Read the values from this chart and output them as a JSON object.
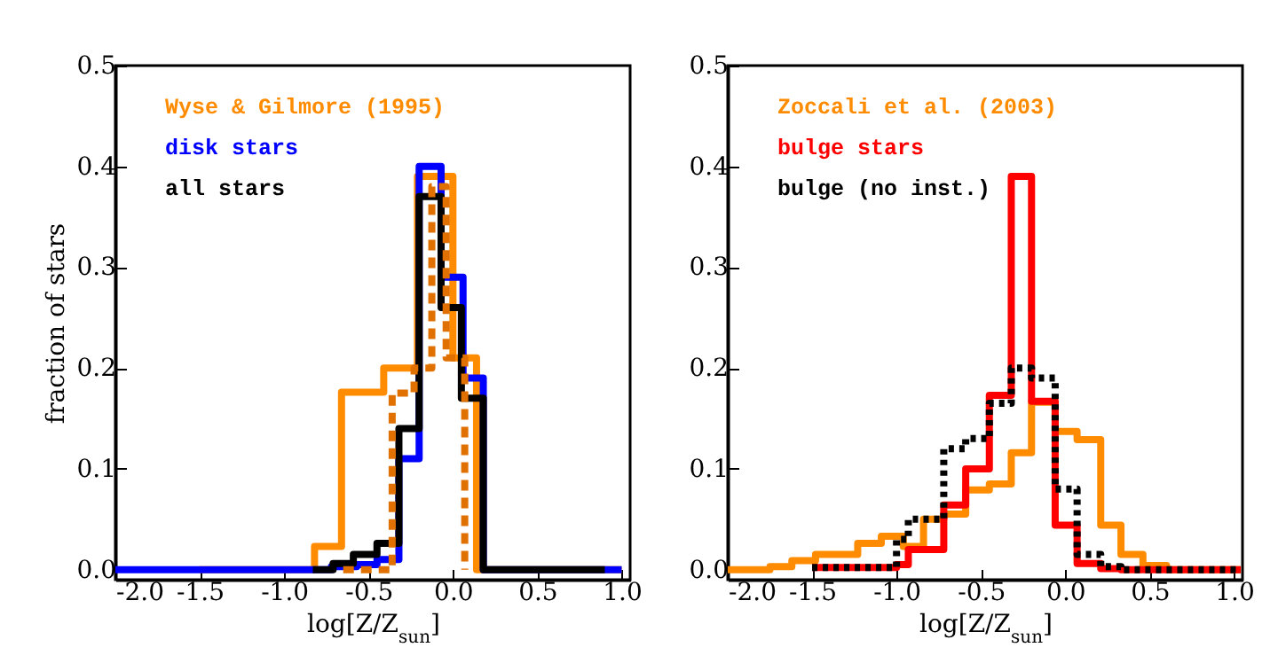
{
  "chart_data": [
    {
      "type": "step",
      "xlabel": "log[Z/Z$_{sun}$]",
      "ylabel": "fraction of stars",
      "xlim": [
        -2.0,
        1.05
      ],
      "ylim": [
        -0.01,
        0.5
      ],
      "xticks": [
        {
          "value": -2,
          "label": "-2.0"
        },
        {
          "value": -1.5,
          "label": "-1.5"
        },
        {
          "value": -1,
          "label": "-1.0"
        },
        {
          "value": -0.5,
          "label": "-0.5"
        },
        {
          "value": 0,
          "label": "0.0"
        },
        {
          "value": 0.5,
          "label": "0.5"
        },
        {
          "value": 1,
          "label": "1.0"
        }
      ],
      "yticks": [
        {
          "value": 0,
          "label": "0.0"
        },
        0.1,
        0.2,
        0.3,
        0.4,
        0.5
      ],
      "series": [
        {
          "name": "Wyse & Gilmore (1995)",
          "color": "#ff8c00",
          "line_style": "solid",
          "x": [
            -1.5,
            -0.82,
            -0.66,
            -0.41,
            -0.21,
            0.0,
            0.14,
            1.0
          ],
          "values": [
            0,
            0.023,
            0.176,
            0.2,
            0.39,
            0.21,
            0,
            0
          ]
        },
        {
          "name": "disk stars",
          "color": "#0000ff",
          "line_style": "solid",
          "x": [
            -2.0,
            -0.72,
            -0.57,
            -0.45,
            -0.32,
            -0.2,
            -0.07,
            0.06,
            0.18,
            1.0
          ],
          "values": [
            0,
            0.003,
            0.005,
            0.01,
            0.11,
            0.4,
            0.29,
            0.19,
            0,
            0
          ]
        },
        {
          "name": "all stars",
          "color": "#000000",
          "line_style": "solid",
          "x": [
            -0.83,
            -0.71,
            -0.59,
            -0.45,
            -0.32,
            -0.2,
            -0.07,
            0.05,
            0.18,
            0.9
          ],
          "values": [
            0,
            0.006,
            0.015,
            0.026,
            0.14,
            0.37,
            0.26,
            0.17,
            0,
            0
          ]
        },
        {
          "color": "#e07000",
          "line_style": "dashed",
          "x": [
            -0.65,
            -0.36,
            -0.23,
            -0.125,
            -0.04,
            0.07
          ],
          "values": [
            0,
            0.175,
            0.2,
            0.38,
            0.21,
            0
          ]
        }
      ]
    },
    {
      "type": "step",
      "xlabel": "log[Z/Z$_{sun}$]",
      "xlim": [
        -2.0,
        1.05
      ],
      "ylim": [
        -0.01,
        0.5
      ],
      "xticks": [
        {
          "value": -2,
          "label": "-2.0"
        },
        {
          "value": -1.5,
          "label": "-1.5"
        },
        {
          "value": -1,
          "label": "-1.0"
        },
        {
          "value": -0.5,
          "label": "-0.5"
        },
        {
          "value": 0,
          "label": "0.0"
        },
        {
          "value": 0.5,
          "label": "0.5"
        },
        {
          "value": 1,
          "label": "1.0"
        }
      ],
      "yticks": [
        {
          "value": 0,
          "label": "0.0"
        },
        0.1,
        0.2,
        0.3,
        0.4,
        0.5
      ],
      "series": [
        {
          "name": "Zoccali et al. (2003)",
          "color": "#ff8c00",
          "line_style": "solid",
          "x": [
            -2.0,
            -1.75,
            -1.62,
            -1.48,
            -1.23,
            -1.09,
            -0.96,
            -0.84,
            -0.72,
            -0.59,
            -0.45,
            -0.32,
            -0.2,
            -0.06,
            0.07,
            0.21,
            0.33,
            0.46,
            0.6,
            1.04
          ],
          "values": [
            0,
            0.003,
            0.009,
            0.015,
            0.026,
            0.033,
            0.023,
            0.05,
            0.055,
            0.079,
            0.085,
            0.116,
            0.166,
            0.137,
            0.129,
            0.044,
            0.015,
            0.004,
            0,
            0
          ]
        },
        {
          "name": "bulge stars",
          "color": "#ff0000",
          "line_style": "solid",
          "x": [
            -1.5,
            -1.0,
            -0.93,
            -0.72,
            -0.59,
            -0.45,
            -0.32,
            -0.2,
            -0.06,
            0.07,
            0.21,
            0.33,
            1.04
          ],
          "values": [
            0.002,
            0.005,
            0.02,
            0.064,
            0.1,
            0.173,
            0.39,
            0.167,
            0.044,
            0.006,
            0.001,
            0,
            0
          ]
        },
        {
          "name": "bulge (no inst.)",
          "color": "#000000",
          "line_style": "dotted",
          "x": [
            -1.5,
            -1.0,
            -0.93,
            -0.72,
            -0.59,
            -0.45,
            -0.32,
            -0.2,
            -0.06,
            0.07,
            0.21,
            0.33,
            1.04
          ],
          "values": [
            0.002,
            0.03,
            0.05,
            0.12,
            0.13,
            0.165,
            0.2,
            0.19,
            0.08,
            0.015,
            0.003,
            0,
            0
          ]
        }
      ]
    }
  ]
}
